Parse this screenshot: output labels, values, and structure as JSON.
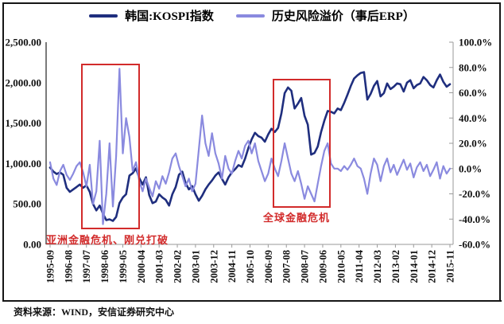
{
  "source": {
    "text": "资料来源：WIND，安信证券研究中心"
  },
  "chart_data": {
    "type": "line",
    "title": "",
    "x_range": [
      "1995-09",
      "2015-11"
    ],
    "x_step_months": 2,
    "x_labels": [
      "1995-09",
      "1996-08",
      "1997-07",
      "1998-06",
      "1999-05",
      "2000-04",
      "2001-03",
      "2002-02",
      "2003-01",
      "2003-12",
      "2004-11",
      "2005-10",
      "2006-09",
      "2007-08",
      "2008-07",
      "2009-06",
      "2010-05",
      "2011-04",
      "2012-03",
      "2013-02",
      "2014-01",
      "2014-12",
      "2015-11"
    ],
    "left_axis": {
      "min": 0,
      "max": 2500,
      "ticks": [
        {
          "label": "2,500.00",
          "value": 2500
        },
        {
          "label": "2,000.00",
          "value": 2000
        },
        {
          "label": "1,500.00",
          "value": 1500
        },
        {
          "label": "1,000.00",
          "value": 1000
        },
        {
          "label": "500.00",
          "value": 500
        },
        {
          "label": "0.00",
          "value": 0
        }
      ]
    },
    "right_axis": {
      "min": -60,
      "max": 100,
      "ticks": [
        {
          "label": "100.0%",
          "value": 100
        },
        {
          "label": "80.0%",
          "value": 80
        },
        {
          "label": "60.0%",
          "value": 60
        },
        {
          "label": "40.0%",
          "value": 40
        },
        {
          "label": "20.0%",
          "value": 20
        },
        {
          "label": "0.0%",
          "value": 0
        },
        {
          "label": "-20.0%",
          "value": -20
        },
        {
          "label": "-40.0%",
          "value": -40
        },
        {
          "label": "-60.0%",
          "value": -60
        }
      ]
    },
    "series": [
      {
        "name": "韩国:KOSPI指数",
        "axis": "left",
        "color": "#1F2E7E",
        "values": [
          950,
          900,
          870,
          890,
          860,
          700,
          650,
          680,
          710,
          740,
          700,
          730,
          650,
          500,
          420,
          480,
          380,
          300,
          310,
          290,
          340,
          510,
          580,
          620,
          850,
          880,
          940,
          820,
          740,
          830,
          610,
          510,
          530,
          620,
          580,
          550,
          480,
          620,
          710,
          860,
          900,
          760,
          680,
          720,
          620,
          540,
          600,
          680,
          740,
          790,
          850,
          890,
          810,
          740,
          830,
          890,
          930,
          980,
          960,
          1060,
          1190,
          1300,
          1380,
          1340,
          1320,
          1270,
          1360,
          1430,
          1390,
          1440,
          1620,
          1870,
          1940,
          1900,
          1680,
          1740,
          1810,
          1590,
          1480,
          1110,
          1130,
          1210,
          1390,
          1530,
          1650,
          1640,
          1620,
          1680,
          1660,
          1750,
          1850,
          1960,
          2050,
          2090,
          2120,
          2130,
          1790,
          1860,
          1960,
          2020,
          1830,
          1870,
          1990,
          1920,
          1950,
          1990,
          1980,
          1890,
          2000,
          2030,
          1930,
          1970,
          1990,
          2070,
          2030,
          1970,
          1940,
          2030,
          2100,
          2010,
          1950,
          1980
        ]
      },
      {
        "name": "历史风险溢价（事后ERP）",
        "axis": "right",
        "color": "#8A8ADF",
        "values": [
          5,
          -8,
          -13,
          -2,
          3,
          -5,
          -9,
          -4,
          2,
          5,
          -3,
          -14,
          3,
          -28,
          -18,
          22,
          -44,
          -20,
          20,
          -30,
          10,
          79,
          12,
          40,
          25,
          -2,
          5,
          -10,
          -18,
          -8,
          -15,
          -22,
          -10,
          -16,
          -6,
          -12,
          -3,
          8,
          12,
          2,
          -6,
          -14,
          -8,
          -18,
          -12,
          15,
          42,
          20,
          10,
          28,
          12,
          4,
          -8,
          10,
          0,
          -4,
          6,
          14,
          8,
          18,
          22,
          12,
          20,
          6,
          -2,
          -10,
          -4,
          8,
          0,
          -6,
          6,
          20,
          8,
          -4,
          -10,
          -2,
          -12,
          -24,
          -14,
          -20,
          -26,
          -12,
          2,
          14,
          20,
          4,
          0,
          0,
          -2,
          2,
          -1,
          3,
          8,
          2,
          0,
          -8,
          -20,
          -4,
          8,
          3,
          -10,
          2,
          8,
          -3,
          3,
          -5,
          1,
          7,
          -1,
          4,
          -7,
          1,
          5,
          -2,
          3,
          -6,
          -1,
          5,
          -8,
          2,
          -4,
          0
        ]
      }
    ],
    "annotations": [
      {
        "text": "亚洲金融危机、刚兑打破"
      },
      {
        "text": "全球金融危机"
      }
    ],
    "accent_red": "#D22B2B",
    "grid": false,
    "legend_position": "top-center"
  }
}
